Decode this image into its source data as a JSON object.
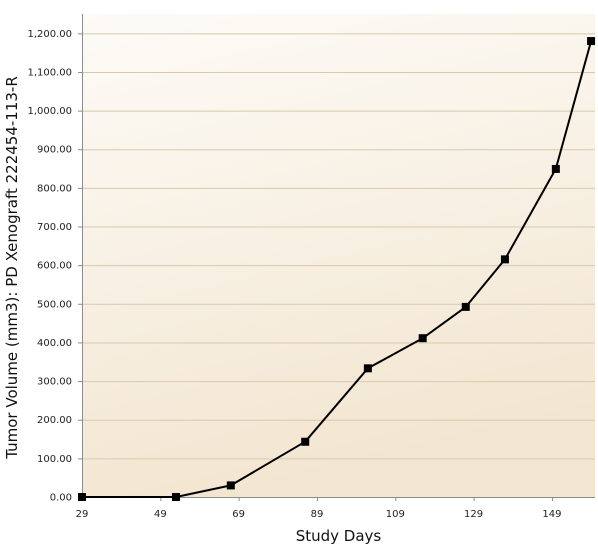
{
  "chart_data": {
    "type": "line",
    "title": "",
    "xlabel": "Study Days",
    "ylabel": "Tumor Volume (mm3): PD Xenograft 222454-113-R",
    "xlim": [
      29,
      160
    ],
    "ylim": [
      0,
      1250
    ],
    "x_ticks": [
      29,
      49,
      69,
      89,
      109,
      129,
      149
    ],
    "x_tick_labels": [
      "29",
      "49",
      "69",
      "89",
      "109",
      "129",
      "149"
    ],
    "y_ticks": [
      0,
      100,
      200,
      300,
      400,
      500,
      600,
      700,
      800,
      900,
      1000,
      1100,
      1200
    ],
    "y_tick_labels": [
      "0.00",
      "100.00",
      "200.00",
      "300.00",
      "400.00",
      "500.00",
      "600.00",
      "700.00",
      "800.00",
      "900.00",
      "1,000.00",
      "1,100.00",
      "1,200.00"
    ],
    "grid": true,
    "legend": "none",
    "series": [
      {
        "x": [
          29,
          53,
          67,
          86,
          102,
          116,
          127,
          137,
          150,
          159
        ],
        "values": [
          0,
          0,
          30,
          143,
          333,
          411,
          492,
          615,
          849,
          1180
        ],
        "color": "#000000",
        "marker": "square"
      }
    ],
    "colors": {
      "background_top": "#fdfbf7",
      "background_bottom": "#f3e6d1",
      "gridline": "#d8c9ae",
      "axis": "#8c8c8c"
    }
  }
}
